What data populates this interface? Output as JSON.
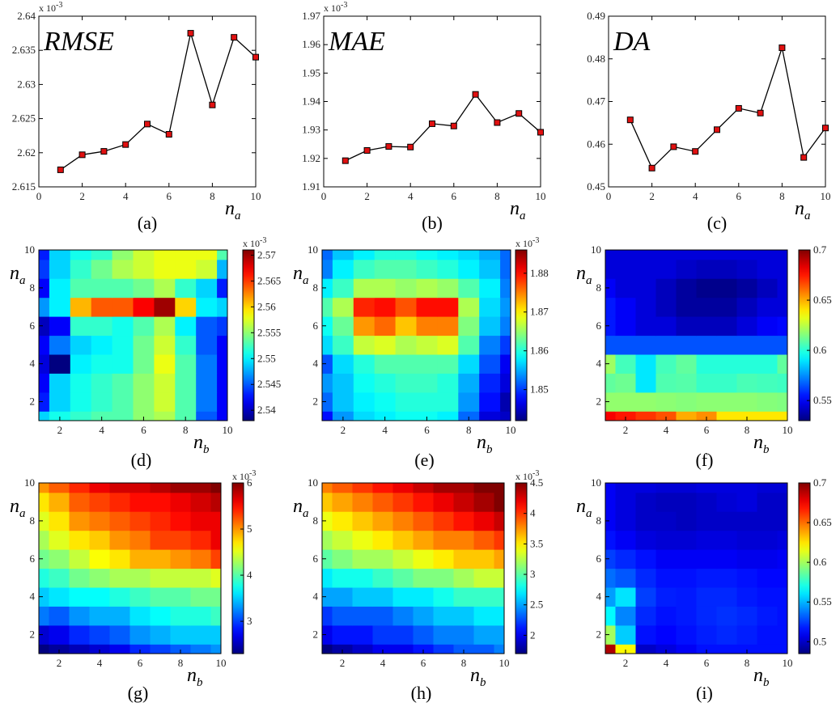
{
  "chart_data": [
    {
      "id": "a",
      "type": "line",
      "title": "RMSE",
      "caption": "(a)",
      "xlabel": "n",
      "xlabel_sub": "a",
      "multiplier": "x 10",
      "multiplier_exp": "-3",
      "x": [
        1,
        2,
        3,
        4,
        5,
        6,
        7,
        8,
        9,
        10
      ],
      "values": [
        2.6175,
        2.6197,
        2.6202,
        2.6212,
        2.6242,
        2.6227,
        2.6375,
        2.627,
        2.6369,
        2.634
      ],
      "xlim": [
        0,
        10
      ],
      "ylim": [
        2.615,
        2.64
      ],
      "xticks": [
        "0",
        "2",
        "4",
        "6",
        "8",
        "10"
      ],
      "yticks": [
        "2.615",
        "2.62",
        "2.625",
        "2.63",
        "2.635",
        "2.64"
      ]
    },
    {
      "id": "b",
      "type": "line",
      "title": "MAE",
      "caption": "(b)",
      "xlabel": "n",
      "xlabel_sub": "a",
      "multiplier": "x 10",
      "multiplier_exp": "-3",
      "x": [
        1,
        2,
        3,
        4,
        5,
        6,
        7,
        8,
        9,
        10
      ],
      "values": [
        1.9192,
        1.9228,
        1.9242,
        1.924,
        1.9322,
        1.9314,
        1.9425,
        1.9326,
        1.9358,
        1.9292
      ],
      "xlim": [
        0,
        10
      ],
      "ylim": [
        1.91,
        1.97
      ],
      "xticks": [
        "0",
        "2",
        "4",
        "6",
        "8",
        "10"
      ],
      "yticks": [
        "1.91",
        "1.92",
        "1.93",
        "1.94",
        "1.95",
        "1.96",
        "1.97"
      ]
    },
    {
      "id": "c",
      "type": "line",
      "title": "DA",
      "caption": "(c)",
      "xlabel": "n",
      "xlabel_sub": "a",
      "multiplier": "",
      "multiplier_exp": "",
      "x": [
        1,
        2,
        3,
        4,
        5,
        6,
        7,
        8,
        9,
        10
      ],
      "values": [
        0.4657,
        0.4544,
        0.4594,
        0.4583,
        0.4634,
        0.4684,
        0.4673,
        0.4826,
        0.4569,
        0.4638
      ],
      "xlim": [
        0,
        10
      ],
      "ylim": [
        0.45,
        0.49
      ],
      "xticks": [
        "0",
        "2",
        "4",
        "6",
        "8",
        "10"
      ],
      "yticks": [
        "0.45",
        "0.46",
        "0.47",
        "0.48",
        "0.49"
      ]
    },
    {
      "id": "d",
      "type": "heatmap",
      "caption": "(d)",
      "xlabel": "n",
      "xlabel_sub": "b",
      "ylabel": "n",
      "ylabel_sub": "a",
      "xlim": [
        1,
        10
      ],
      "ylim": [
        1,
        10
      ],
      "xticks": [
        "2",
        "4",
        "6",
        "8",
        "10"
      ],
      "yticks": [
        "2",
        "4",
        "6",
        "8",
        "10"
      ],
      "zlim": [
        2.538,
        2.571
      ],
      "colorbar_ticks": [
        "2.54",
        "2.545",
        "2.55",
        "2.555",
        "2.56",
        "2.565",
        "2.57"
      ],
      "colorbar_multiplier": "x 10",
      "colorbar_multiplier_exp": "-3",
      "z": [
        [
          2.549,
          2.551,
          2.552,
          2.553,
          2.553,
          2.555,
          2.556,
          2.553,
          2.545,
          2.542
        ],
        [
          2.543,
          2.549,
          2.551,
          2.552,
          2.553,
          2.555,
          2.557,
          2.553,
          2.546,
          2.542
        ],
        [
          2.542,
          2.549,
          2.551,
          2.552,
          2.553,
          2.555,
          2.557,
          2.553,
          2.546,
          2.542
        ],
        [
          2.541,
          2.538,
          2.55,
          2.551,
          2.551,
          2.554,
          2.558,
          2.553,
          2.546,
          2.542
        ],
        [
          2.542,
          2.546,
          2.549,
          2.55,
          2.551,
          2.554,
          2.557,
          2.552,
          2.545,
          2.542
        ],
        [
          2.54,
          2.542,
          2.552,
          2.552,
          2.551,
          2.553,
          2.556,
          2.55,
          2.545,
          2.544
        ],
        [
          2.547,
          2.55,
          2.561,
          2.564,
          2.564,
          2.567,
          2.57,
          2.56,
          2.55,
          2.549
        ],
        [
          2.542,
          2.55,
          2.553,
          2.553,
          2.553,
          2.554,
          2.556,
          2.552,
          2.549,
          2.543
        ],
        [
          2.544,
          2.549,
          2.552,
          2.554,
          2.556,
          2.557,
          2.558,
          2.558,
          2.557,
          2.548
        ],
        [
          2.543,
          2.549,
          2.551,
          2.552,
          2.555,
          2.557,
          2.558,
          2.558,
          2.558,
          2.553
        ]
      ]
    },
    {
      "id": "e",
      "type": "heatmap",
      "caption": "(e)",
      "xlabel": "n",
      "xlabel_sub": "b",
      "ylabel": "n",
      "ylabel_sub": "a",
      "xlim": [
        1,
        10
      ],
      "ylim": [
        1,
        10
      ],
      "xticks": [
        "2",
        "4",
        "6",
        "8",
        "10"
      ],
      "yticks": [
        "2",
        "4",
        "6",
        "8",
        "10"
      ],
      "zlim": [
        1.842,
        1.886
      ],
      "colorbar_ticks": [
        "1.85",
        "1.86",
        "1.87",
        "1.88"
      ],
      "colorbar_multiplier": "x 10",
      "colorbar_multiplier_exp": "-3",
      "z": [
        [
          1.848,
          1.854,
          1.857,
          1.858,
          1.859,
          1.859,
          1.858,
          1.852,
          1.846,
          1.845
        ],
        [
          1.852,
          1.856,
          1.858,
          1.859,
          1.86,
          1.86,
          1.86,
          1.854,
          1.848,
          1.844
        ],
        [
          1.854,
          1.856,
          1.859,
          1.86,
          1.861,
          1.861,
          1.86,
          1.855,
          1.849,
          1.846
        ],
        [
          1.851,
          1.857,
          1.86,
          1.862,
          1.862,
          1.862,
          1.862,
          1.857,
          1.851,
          1.847
        ],
        [
          1.857,
          1.861,
          1.867,
          1.868,
          1.866,
          1.867,
          1.868,
          1.862,
          1.853,
          1.85
        ],
        [
          1.859,
          1.863,
          1.874,
          1.876,
          1.872,
          1.875,
          1.875,
          1.864,
          1.856,
          1.853
        ],
        [
          1.862,
          1.866,
          1.879,
          1.88,
          1.877,
          1.88,
          1.88,
          1.866,
          1.857,
          1.854
        ],
        [
          1.858,
          1.861,
          1.866,
          1.866,
          1.865,
          1.866,
          1.865,
          1.862,
          1.858,
          1.853
        ],
        [
          1.853,
          1.858,
          1.861,
          1.862,
          1.862,
          1.861,
          1.86,
          1.858,
          1.856,
          1.852
        ],
        [
          1.852,
          1.856,
          1.858,
          1.86,
          1.86,
          1.859,
          1.858,
          1.857,
          1.855,
          1.852
        ]
      ]
    },
    {
      "id": "f",
      "type": "heatmap",
      "caption": "(f)",
      "xlabel": "n",
      "xlabel_sub": "b",
      "ylabel": "n",
      "ylabel_sub": "a",
      "xlim": [
        1,
        10
      ],
      "ylim": [
        1,
        10
      ],
      "xticks": [
        "2",
        "4",
        "6",
        "8",
        "10"
      ],
      "yticks": [
        "2",
        "4",
        "6",
        "8",
        "10"
      ],
      "zlim": [
        0.53,
        0.7
      ],
      "colorbar_ticks": [
        "0.55",
        "0.6",
        "0.65",
        "0.7"
      ],
      "colorbar_multiplier": "",
      "colorbar_multiplier_exp": "",
      "z": [
        [
          0.68,
          0.675,
          0.67,
          0.665,
          0.65,
          0.655,
          0.64,
          0.64,
          0.64,
          0.64
        ],
        [
          0.618,
          0.618,
          0.618,
          0.617,
          0.616,
          0.617,
          0.617,
          0.617,
          0.616,
          0.615
        ],
        [
          0.61,
          0.612,
          0.59,
          0.607,
          0.608,
          0.603,
          0.603,
          0.606,
          0.605,
          0.604
        ],
        [
          0.62,
          0.605,
          0.59,
          0.605,
          0.61,
          0.6,
          0.6,
          0.6,
          0.6,
          0.61
        ],
        [
          0.565,
          0.565,
          0.565,
          0.565,
          0.565,
          0.565,
          0.565,
          0.565,
          0.565,
          0.565
        ],
        [
          0.555,
          0.55,
          0.545,
          0.545,
          0.54,
          0.54,
          0.54,
          0.545,
          0.55,
          0.552
        ],
        [
          0.555,
          0.55,
          0.545,
          0.54,
          0.535,
          0.535,
          0.535,
          0.54,
          0.545,
          0.545
        ],
        [
          0.55,
          0.545,
          0.545,
          0.54,
          0.535,
          0.532,
          0.532,
          0.535,
          0.54,
          0.545
        ],
        [
          0.545,
          0.545,
          0.545,
          0.545,
          0.542,
          0.54,
          0.54,
          0.542,
          0.545,
          0.545
        ],
        [
          0.545,
          0.545,
          0.545,
          0.545,
          0.545,
          0.545,
          0.545,
          0.545,
          0.545,
          0.545
        ]
      ]
    },
    {
      "id": "g",
      "type": "heatmap",
      "caption": "(g)",
      "xlabel": "n",
      "xlabel_sub": "b",
      "ylabel": "n",
      "ylabel_sub": "a",
      "xlim": [
        1,
        10
      ],
      "ylim": [
        1,
        10
      ],
      "xticks": [
        "2",
        "4",
        "6",
        "8",
        "10"
      ],
      "yticks": [
        "2",
        "4",
        "6",
        "8",
        "10"
      ],
      "zlim": [
        2.3,
        6.0
      ],
      "colorbar_ticks": [
        "3",
        "4",
        "5",
        "6"
      ],
      "colorbar_multiplier": "x 10",
      "colorbar_multiplier_exp": "-3",
      "z": [
        [
          2.3,
          2.4,
          2.5,
          2.6,
          2.7,
          2.9,
          3.0,
          3.1,
          3.2,
          3.3
        ],
        [
          2.6,
          2.7,
          2.9,
          3.0,
          3.1,
          3.3,
          3.4,
          3.5,
          3.5,
          3.5
        ],
        [
          3.2,
          3.1,
          3.3,
          3.4,
          3.4,
          3.6,
          3.7,
          3.8,
          3.8,
          3.9
        ],
        [
          3.5,
          3.6,
          3.7,
          3.7,
          3.8,
          3.9,
          4.0,
          4.0,
          4.1,
          4.1
        ],
        [
          3.8,
          3.9,
          4.1,
          4.2,
          4.3,
          4.3,
          4.4,
          4.4,
          4.4,
          4.5
        ],
        [
          4.1,
          4.2,
          4.4,
          4.6,
          4.7,
          4.9,
          4.9,
          5.0,
          5.1,
          5.3
        ],
        [
          4.3,
          4.5,
          4.7,
          4.8,
          5.0,
          5.1,
          5.3,
          5.3,
          5.4,
          5.6
        ],
        [
          4.5,
          4.7,
          5.0,
          5.1,
          5.2,
          5.3,
          5.4,
          5.5,
          5.6,
          5.6
        ],
        [
          4.7,
          4.9,
          5.2,
          5.3,
          5.4,
          5.5,
          5.5,
          5.6,
          5.7,
          5.8
        ],
        [
          5.0,
          5.2,
          5.4,
          5.6,
          5.7,
          5.7,
          5.8,
          5.9,
          5.9,
          6.0
        ]
      ]
    },
    {
      "id": "h",
      "type": "heatmap",
      "caption": "(h)",
      "xlabel": "n",
      "xlabel_sub": "b",
      "ylabel": "n",
      "ylabel_sub": "a",
      "xlim": [
        1,
        10
      ],
      "ylim": [
        1,
        10
      ],
      "xticks": [
        "2",
        "4",
        "6",
        "8",
        "10"
      ],
      "yticks": [
        "2",
        "4",
        "6",
        "8",
        "10"
      ],
      "zlim": [
        1.7,
        4.5
      ],
      "colorbar_ticks": [
        "2",
        "2.5",
        "3",
        "3.5",
        "4",
        "4.5"
      ],
      "colorbar_multiplier": "x 10",
      "colorbar_multiplier_exp": "-3",
      "z": [
        [
          1.7,
          1.8,
          1.9,
          2.0,
          2.0,
          2.1,
          2.2,
          2.3,
          2.3,
          2.4
        ],
        [
          2.0,
          2.1,
          2.1,
          2.2,
          2.2,
          2.3,
          2.4,
          2.4,
          2.5,
          2.5
        ],
        [
          2.2,
          2.3,
          2.3,
          2.3,
          2.4,
          2.5,
          2.6,
          2.6,
          2.7,
          2.7
        ],
        [
          2.5,
          2.5,
          2.6,
          2.6,
          2.7,
          2.7,
          2.8,
          2.9,
          2.9,
          2.9
        ],
        [
          2.7,
          2.8,
          2.8,
          2.9,
          3.0,
          3.1,
          3.1,
          3.2,
          3.3,
          3.3
        ],
        [
          3.0,
          3.1,
          3.2,
          3.2,
          3.3,
          3.4,
          3.5,
          3.6,
          3.6,
          3.7
        ],
        [
          3.2,
          3.3,
          3.4,
          3.5,
          3.6,
          3.7,
          3.8,
          3.8,
          3.9,
          4.0
        ],
        [
          3.4,
          3.5,
          3.6,
          3.7,
          3.8,
          3.9,
          4.0,
          4.1,
          4.2,
          4.3
        ],
        [
          3.6,
          3.7,
          3.8,
          3.9,
          4.0,
          4.1,
          4.2,
          4.3,
          4.4,
          4.5
        ],
        [
          3.8,
          3.9,
          4.0,
          4.1,
          4.2,
          4.3,
          4.4,
          4.4,
          4.5,
          4.5
        ]
      ]
    },
    {
      "id": "i",
      "type": "heatmap",
      "caption": "(i)",
      "xlabel": "n",
      "xlabel_sub": "b",
      "ylabel": "n",
      "ylabel_sub": "a",
      "xlim": [
        1,
        10
      ],
      "ylim": [
        1,
        10
      ],
      "xticks": [
        "2",
        "4",
        "6",
        "8",
        "10"
      ],
      "yticks": [
        "2",
        "4",
        "6",
        "8",
        "10"
      ],
      "zlim": [
        0.485,
        0.7
      ],
      "colorbar_ticks": [
        "0.5",
        "0.55",
        "0.6",
        "0.65",
        "0.7"
      ],
      "colorbar_multiplier": "",
      "colorbar_multiplier_exp": "",
      "z": [
        [
          0.69,
          0.62,
          0.5,
          0.505,
          0.51,
          0.515,
          0.515,
          0.515,
          0.515,
          0.515
        ],
        [
          0.6,
          0.555,
          0.515,
          0.512,
          0.515,
          0.518,
          0.52,
          0.518,
          0.515,
          0.515
        ],
        [
          0.565,
          0.54,
          0.52,
          0.515,
          0.517,
          0.52,
          0.522,
          0.52,
          0.517,
          0.515
        ],
        [
          0.545,
          0.56,
          0.525,
          0.518,
          0.517,
          0.52,
          0.52,
          0.517,
          0.515,
          0.515
        ],
        [
          0.535,
          0.53,
          0.52,
          0.515,
          0.515,
          0.517,
          0.517,
          0.515,
          0.513,
          0.513
        ],
        [
          0.525,
          0.52,
          0.515,
          0.51,
          0.51,
          0.51,
          0.51,
          0.508,
          0.508,
          0.51
        ],
        [
          0.515,
          0.51,
          0.505,
          0.503,
          0.503,
          0.505,
          0.505,
          0.503,
          0.503,
          0.505
        ],
        [
          0.51,
          0.505,
          0.5,
          0.5,
          0.498,
          0.5,
          0.5,
          0.5,
          0.5,
          0.5
        ],
        [
          0.51,
          0.505,
          0.5,
          0.498,
          0.498,
          0.5,
          0.503,
          0.505,
          0.5,
          0.5
        ],
        [
          0.51,
          0.505,
          0.505,
          0.503,
          0.503,
          0.505,
          0.505,
          0.505,
          0.503,
          0.503
        ]
      ]
    }
  ]
}
